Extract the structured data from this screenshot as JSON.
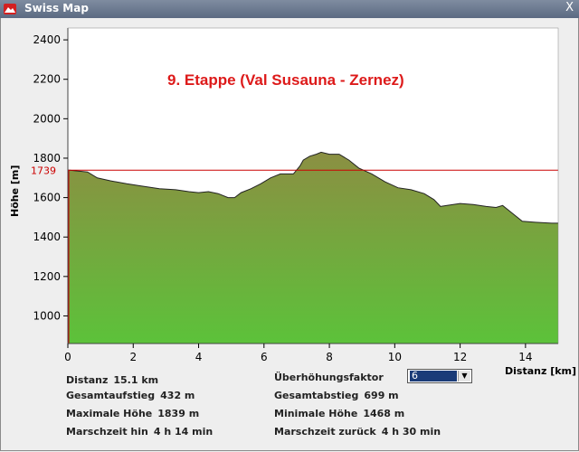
{
  "window": {
    "title": "Swiss Map",
    "close_label": "X"
  },
  "chart_data": {
    "type": "area",
    "title": "9. Etappe (Val Susauna - Zernez)",
    "xlabel": "Distanz [km]",
    "ylabel": "Höhe [m]",
    "xlim": [
      0,
      15
    ],
    "ylim": [
      860,
      2460
    ],
    "x_ticks": [
      0,
      2,
      4,
      6,
      8,
      10,
      12,
      14
    ],
    "y_ticks": [
      1000,
      1200,
      1400,
      1600,
      1800,
      2000,
      2200,
      2400
    ],
    "reference_line": {
      "value": 1739,
      "label": "1739",
      "color": "#cc0000"
    },
    "grid": false,
    "x": [
      0,
      0.05,
      0.6,
      0.9,
      1.3,
      1.8,
      2.2,
      2.8,
      3.3,
      3.7,
      4.0,
      4.3,
      4.6,
      4.9,
      5.1,
      5.3,
      5.6,
      5.9,
      6.2,
      6.5,
      6.9,
      7.1,
      7.2,
      7.4,
      7.6,
      7.75,
      8.0,
      8.3,
      8.6,
      8.9,
      9.3,
      9.7,
      10.1,
      10.5,
      10.9,
      11.2,
      11.4,
      11.6,
      12.0,
      12.4,
      12.8,
      13.1,
      13.3,
      13.6,
      13.9,
      14.3,
      14.8,
      15.0
    ],
    "y": [
      1739,
      1739,
      1730,
      1700,
      1685,
      1670,
      1660,
      1645,
      1640,
      1630,
      1625,
      1630,
      1620,
      1600,
      1600,
      1625,
      1645,
      1670,
      1700,
      1720,
      1720,
      1760,
      1790,
      1810,
      1820,
      1830,
      1820,
      1820,
      1790,
      1750,
      1720,
      1680,
      1650,
      1640,
      1620,
      1590,
      1555,
      1560,
      1570,
      1565,
      1555,
      1550,
      1560,
      1520,
      1480,
      1475,
      1470,
      1470
    ],
    "fill_top_color": "#8b8f42",
    "fill_bottom_color": "#5cc23a"
  },
  "info": {
    "distance_label": "Distanz",
    "distance_value": "15.1 km",
    "ascent_label": "Gesamtaufstieg",
    "ascent_value": "432 m",
    "max_label": "Maximale Höhe",
    "max_value": "1839 m",
    "time_there_label": "Marschzeit hin",
    "time_there_value": "4 h 14 min",
    "factor_label": "Überhöhungsfaktor",
    "factor_value": "6",
    "descent_label": "Gesamtabstieg",
    "descent_value": "699 m",
    "min_label": "Minimale Höhe",
    "min_value": "1468 m",
    "time_back_label": "Marschzeit zurück",
    "time_back_value": "4 h 30 min"
  }
}
